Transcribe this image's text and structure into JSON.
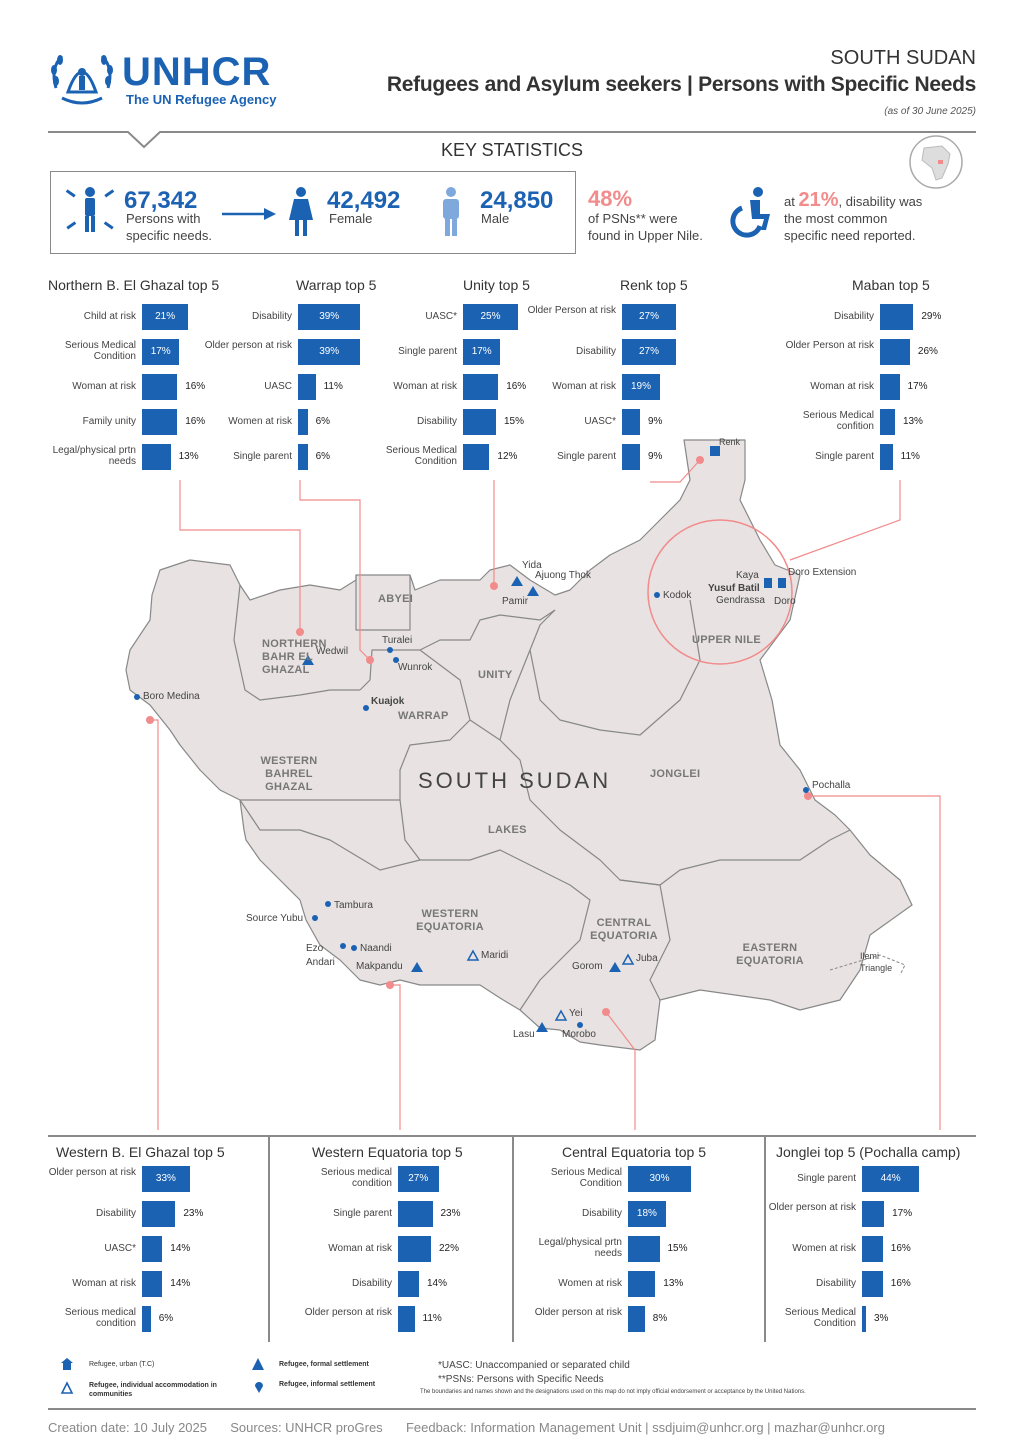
{
  "header": {
    "logo": "UNHCR",
    "logo_sub": "The UN Refugee Agency",
    "country": "SOUTH SUDAN",
    "title": "Refugees and Asylum seekers | Persons with Specific Needs",
    "as_of": "(as of 30 June 2025)"
  },
  "key_statistics": {
    "title": "KEY STATISTICS",
    "total_value": "67,342",
    "total_label_1": "Persons with",
    "total_label_2": "specific needs.",
    "female_value": "42,492",
    "female_label": "Female",
    "male_value": "24,850",
    "male_label": "Male",
    "upper_nile_pct": "48%",
    "upper_nile_line1": "of PSNs** were",
    "upper_nile_line2": "found in Upper Nile.",
    "disability_prefix": "at ",
    "disability_pct": "21%",
    "disability_suffix": ", disability was",
    "disability_line2": "the most common",
    "disability_line3": "specific need reported."
  },
  "chart_data": [
    {
      "type": "bar",
      "title": "Northern B. El Ghazal top 5",
      "categories": [
        "Child at risk",
        "Serious Medical Condition",
        "Woman at risk",
        "Family unity",
        "Legal/physical prtn needs"
      ],
      "values": [
        21,
        17,
        16,
        16,
        13
      ]
    },
    {
      "type": "bar",
      "title": "Warrap top 5",
      "categories": [
        "Disability",
        "Older person at risk",
        "UASC",
        "Women at risk",
        "Single parent"
      ],
      "values": [
        39,
        39,
        11,
        6,
        6
      ]
    },
    {
      "type": "bar",
      "title": "Unity top 5",
      "categories": [
        "UASC*",
        "Single parent",
        "Woman at risk",
        "Disability",
        "Serious Medical Condition"
      ],
      "values": [
        25,
        17,
        16,
        15,
        12
      ]
    },
    {
      "type": "bar",
      "title": "Renk top 5",
      "categories": [
        "Older Person at risk",
        "Disability",
        "Woman at risk",
        "UASC*",
        "Single parent"
      ],
      "values": [
        27,
        27,
        19,
        9,
        9
      ]
    },
    {
      "type": "bar",
      "title": "Maban top 5",
      "categories": [
        "Disability",
        "Older Person at risk",
        "Woman at risk",
        "Serious Medical confition",
        "Single parent"
      ],
      "values": [
        29,
        26,
        17,
        13,
        11
      ]
    },
    {
      "type": "bar",
      "title": "Western B. El Ghazal top 5",
      "categories": [
        "Older person at risk",
        "Disability",
        "UASC*",
        "Woman at risk",
        "Serious medical condition"
      ],
      "values": [
        33,
        23,
        14,
        14,
        6
      ]
    },
    {
      "type": "bar",
      "title": "Western Equatoria top 5",
      "categories": [
        "Serious medical condition",
        "Single parent",
        "Woman at risk",
        "Disability",
        "Older person at risk"
      ],
      "values": [
        27,
        23,
        22,
        14,
        11
      ]
    },
    {
      "type": "bar",
      "title": "Central Equatoria top 5",
      "categories": [
        "Serious Medical Condition",
        "Disability",
        "Legal/physical prtn needs",
        "Women at risk",
        "Older person at risk"
      ],
      "values": [
        30,
        18,
        15,
        13,
        8
      ]
    },
    {
      "type": "bar",
      "title": "Jonglei top 5 (Pochalla camp)",
      "categories": [
        "Single parent",
        "Older person at risk",
        "Women at risk",
        "Disability",
        "Serious Medical Condition"
      ],
      "values": [
        44,
        17,
        16,
        16,
        3
      ]
    }
  ],
  "map": {
    "country_label": "SOUTH SUDAN",
    "regions": {
      "abyei": "ABYEI",
      "nbeg": "NORTHERN BAHR EL GHAZAL",
      "unity": "UNITY",
      "warrap": "WARRAP",
      "upper_nile": "UPPER NILE",
      "jonglei": "JONGLEI",
      "wbeg": "WESTERN BAHREL GHAZAL",
      "lakes": "LAKES",
      "we": "WESTERN EQUATORIA",
      "ce": "CENTRAL EQUATORIA",
      "ee": "EASTERN EQUATORIA",
      "ilemi": "Ilemi Triangle"
    },
    "places": {
      "renk": "Renk",
      "yida": "Yida",
      "ajuong": "Ajuong Thok",
      "pamir": "Pamir",
      "kaya": "Kaya",
      "yusuf": "Yusuf Batil",
      "gendrassa": "Gendrassa",
      "doro": "Doro",
      "doro_ext": "Doro Extension",
      "kodok": "Kodok",
      "turalei": "Turalei",
      "wunrok": "Wunrok",
      "wedwil": "Wedwil",
      "kuajok": "Kuajok",
      "boro": "Boro Medina",
      "pochalla": "Pochalla",
      "tambura": "Tambura",
      "source_yubu": "Source Yubu",
      "ezo": "Ezo",
      "andari": "Andari",
      "naandi": "Naandi",
      "makpandu": "Makpandu",
      "maridi": "Maridi",
      "gorom": "Gorom",
      "juba": "Juba",
      "yei": "Yei",
      "lasu": "Lasu",
      "morobo": "Morobo"
    }
  },
  "legend": {
    "urban": "Refugee, urban (T.C)",
    "formal": "Refugee, formal settlement",
    "individual": "Refugee, individual accommodation in communities",
    "informal": "Refugee, informal settlement"
  },
  "notes": {
    "uasc": "*UASC: Unaccompanied or separated child",
    "psn": "**PSNs: Persons with Specific Needs",
    "disclaimer": "The boundaries and names shown and the designations used on this map do not imply official endorsement or acceptance by the United Nations."
  },
  "footer": {
    "creation": "Creation date: 10 July 2025",
    "sources": "Sources: UNHCR proGres",
    "feedback": "Feedback: Information Management Unit | ssdjuim@unhcr.org | mazhar@unhcr.org"
  },
  "colors": {
    "brand_blue": "#1b62b3",
    "accent_pink": "#f28b8b",
    "map_fill": "#e8e2e2",
    "map_border": "#888888"
  }
}
